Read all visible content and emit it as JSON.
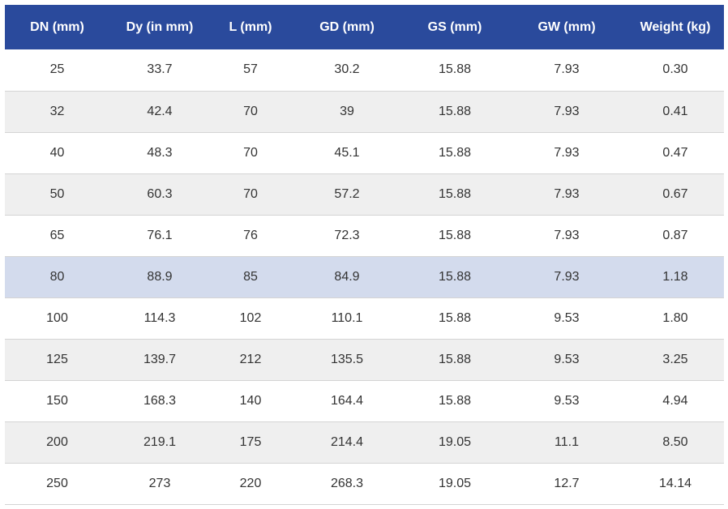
{
  "table": {
    "headers": [
      "DN (mm)",
      "Dy (in mm)",
      "L (mm)",
      "GD (mm)",
      "GS (mm)",
      "GW (mm)",
      "Weight (kg)"
    ],
    "rows": [
      [
        "25",
        "33.7",
        "57",
        "30.2",
        "15.88",
        "7.93",
        "0.30"
      ],
      [
        "32",
        "42.4",
        "70",
        "39",
        "15.88",
        "7.93",
        "0.41"
      ],
      [
        "40",
        "48.3",
        "70",
        "45.1",
        "15.88",
        "7.93",
        "0.47"
      ],
      [
        "50",
        "60.3",
        "70",
        "57.2",
        "15.88",
        "7.93",
        "0.67"
      ],
      [
        "65",
        "76.1",
        "76",
        "72.3",
        "15.88",
        "7.93",
        "0.87"
      ],
      [
        "80",
        "88.9",
        "85",
        "84.9",
        "15.88",
        "7.93",
        "1.18"
      ],
      [
        "100",
        "114.3",
        "102",
        "110.1",
        "15.88",
        "9.53",
        "1.80"
      ],
      [
        "125",
        "139.7",
        "212",
        "135.5",
        "15.88",
        "9.53",
        "3.25"
      ],
      [
        "150",
        "168.3",
        "140",
        "164.4",
        "15.88",
        "9.53",
        "4.94"
      ],
      [
        "200",
        "219.1",
        "175",
        "214.4",
        "19.05",
        "11.1",
        "8.50"
      ],
      [
        "250",
        "273",
        "220",
        "268.3",
        "19.05",
        "12.7",
        "14.14"
      ]
    ],
    "highlighted_row": 5
  },
  "colors": {
    "header_bg": "#2a4a9c",
    "header_text": "#ffffff",
    "row_alt_bg": "#efefef",
    "row_highlight_bg": "#d3dbed"
  }
}
